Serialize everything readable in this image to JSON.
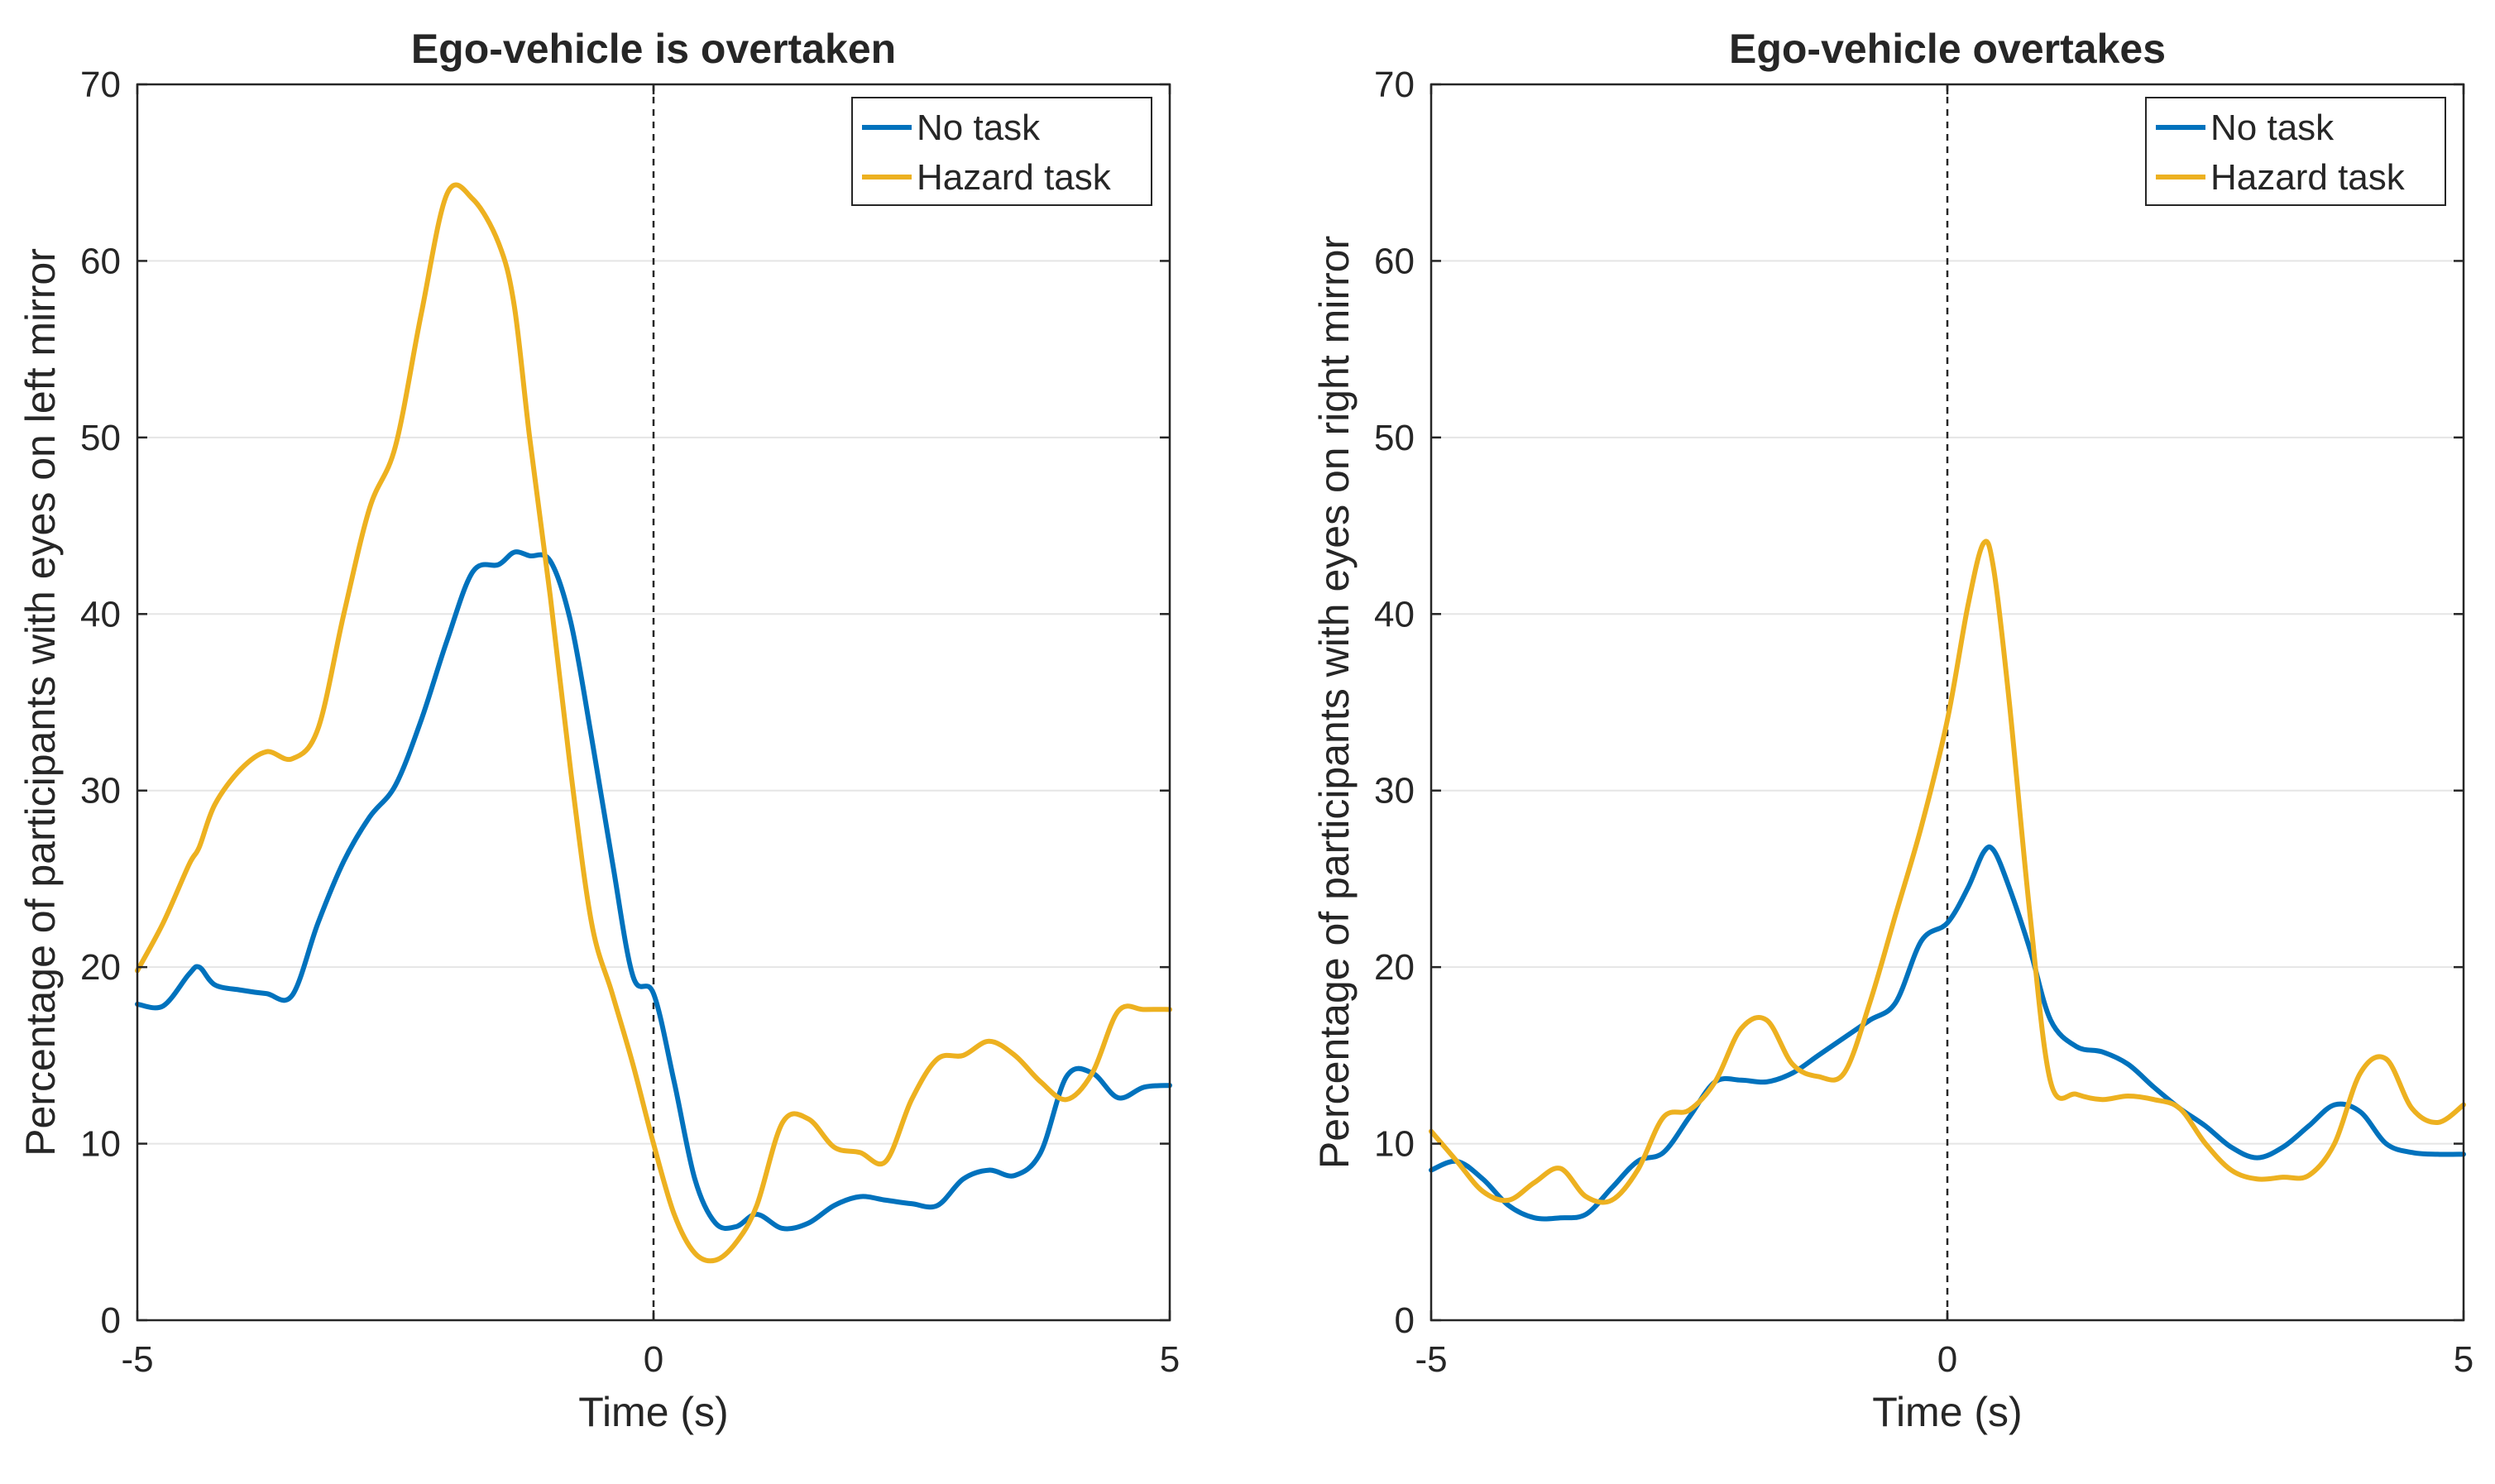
{
  "figure": {
    "line_color_no_task": "#0072BD",
    "line_color_hazard": "#EDB120",
    "zero_line_color": "#262626",
    "grid_color": "#e5e5e5"
  },
  "chart_data": [
    {
      "type": "line",
      "title": "Ego-vehicle is overtaken",
      "xlabel": "Time (s)",
      "ylabel": "Percentage of participants with eyes on left mirror",
      "xlim": [
        -5,
        5
      ],
      "ylim": [
        0,
        70
      ],
      "xticks": [
        "-5",
        "0",
        "5"
      ],
      "xtick_values": [
        -5,
        0,
        5
      ],
      "yticks": [
        "0",
        "10",
        "20",
        "30",
        "40",
        "50",
        "60",
        "70"
      ],
      "ytick_values": [
        0,
        10,
        20,
        30,
        40,
        50,
        60,
        70
      ],
      "grid": "horizontal",
      "vline_x": 0,
      "legend": {
        "location": "top-right",
        "entries": [
          "No task",
          "Hazard task"
        ]
      },
      "x": [
        -5.0,
        -4.75,
        -4.5,
        -4.4,
        -4.25,
        -4.0,
        -3.75,
        -3.5,
        -3.25,
        -3.0,
        -2.75,
        -2.5,
        -2.25,
        -2.0,
        -1.75,
        -1.5,
        -1.35,
        -1.2,
        -1.0,
        -0.8,
        -0.6,
        -0.4,
        -0.2,
        0.0,
        0.2,
        0.4,
        0.6,
        0.8,
        1.0,
        1.25,
        1.5,
        1.75,
        2.0,
        2.25,
        2.5,
        2.75,
        3.0,
        3.25,
        3.5,
        3.75,
        4.0,
        4.25,
        4.5,
        4.75,
        5.0
      ],
      "series": [
        {
          "name": "No task",
          "values": [
            17.9,
            17.8,
            19.6,
            20.0,
            19.0,
            18.7,
            18.5,
            18.4,
            22.5,
            26.0,
            28.5,
            30.3,
            34.0,
            38.5,
            42.4,
            42.8,
            43.5,
            43.3,
            43.0,
            39.5,
            33.0,
            26.0,
            19.5,
            18.5,
            13.5,
            8.0,
            5.5,
            5.3,
            6.0,
            5.2,
            5.5,
            6.5,
            7.0,
            6.8,
            6.6,
            6.5,
            8.0,
            8.5,
            8.2,
            9.5,
            13.8,
            14.0,
            12.6,
            13.2,
            13.3
          ]
        },
        {
          "name": "Hazard task",
          "values": [
            19.8,
            22.5,
            25.8,
            26.8,
            29.2,
            31.2,
            32.2,
            31.8,
            33.5,
            40.0,
            46.0,
            49.5,
            57.0,
            63.8,
            63.5,
            61.0,
            57.5,
            50.0,
            41.0,
            31.0,
            22.5,
            18.5,
            14.5,
            10.0,
            6.0,
            3.8,
            3.4,
            4.4,
            6.5,
            11.2,
            11.4,
            9.8,
            9.5,
            9.0,
            12.5,
            14.8,
            15.0,
            15.8,
            15.0,
            13.5,
            12.5,
            14.0,
            17.5,
            17.6,
            17.6
          ]
        }
      ]
    },
    {
      "type": "line",
      "title": "Ego-vehicle overtakes",
      "xlabel": "Time (s)",
      "ylabel": "Percentage of participants with eyes on right mirror",
      "xlim": [
        -5,
        5
      ],
      "ylim": [
        0,
        70
      ],
      "xticks": [
        "-5",
        "0",
        "5"
      ],
      "xtick_values": [
        -5,
        0,
        5
      ],
      "yticks": [
        "0",
        "10",
        "20",
        "30",
        "40",
        "50",
        "60",
        "70"
      ],
      "ytick_values": [
        0,
        10,
        20,
        30,
        40,
        50,
        60,
        70
      ],
      "grid": "horizontal",
      "vline_x": 0,
      "legend": {
        "location": "top-right",
        "entries": [
          "No task",
          "Hazard task"
        ]
      },
      "x": [
        -5.0,
        -4.75,
        -4.5,
        -4.25,
        -4.0,
        -3.75,
        -3.5,
        -3.25,
        -3.0,
        -2.75,
        -2.5,
        -2.25,
        -2.0,
        -1.75,
        -1.5,
        -1.25,
        -1.0,
        -0.75,
        -0.5,
        -0.25,
        0.0,
        0.2,
        0.35,
        0.45,
        0.6,
        0.8,
        1.0,
        1.25,
        1.5,
        1.75,
        2.0,
        2.25,
        2.5,
        2.75,
        3.0,
        3.25,
        3.5,
        3.75,
        4.0,
        4.25,
        4.5,
        4.75,
        5.0
      ],
      "series": [
        {
          "name": "No task",
          "values": [
            8.5,
            9.0,
            8.0,
            6.5,
            5.8,
            5.8,
            6.0,
            7.5,
            9.0,
            9.5,
            11.5,
            13.5,
            13.6,
            13.5,
            14.0,
            15.0,
            16.0,
            17.0,
            18.0,
            21.5,
            22.5,
            24.5,
            26.5,
            26.6,
            24.5,
            21.0,
            17.0,
            15.5,
            15.2,
            14.5,
            13.2,
            12.0,
            11.0,
            9.8,
            9.2,
            9.8,
            11.0,
            12.2,
            11.8,
            10.0,
            9.5,
            9.4,
            9.4
          ]
        },
        {
          "name": "Hazard task",
          "values": [
            10.7,
            9.0,
            7.3,
            6.8,
            7.8,
            8.6,
            7.0,
            6.8,
            8.5,
            11.5,
            11.9,
            13.5,
            16.5,
            17.0,
            14.5,
            13.8,
            14.0,
            18.0,
            23.0,
            28.0,
            34.0,
            40.5,
            44.0,
            42.5,
            35.0,
            23.0,
            13.5,
            12.8,
            12.5,
            12.7,
            12.5,
            12.0,
            10.0,
            8.5,
            8.0,
            8.1,
            8.2,
            10.0,
            14.0,
            14.8,
            12.0,
            11.2,
            12.2
          ]
        }
      ]
    }
  ]
}
